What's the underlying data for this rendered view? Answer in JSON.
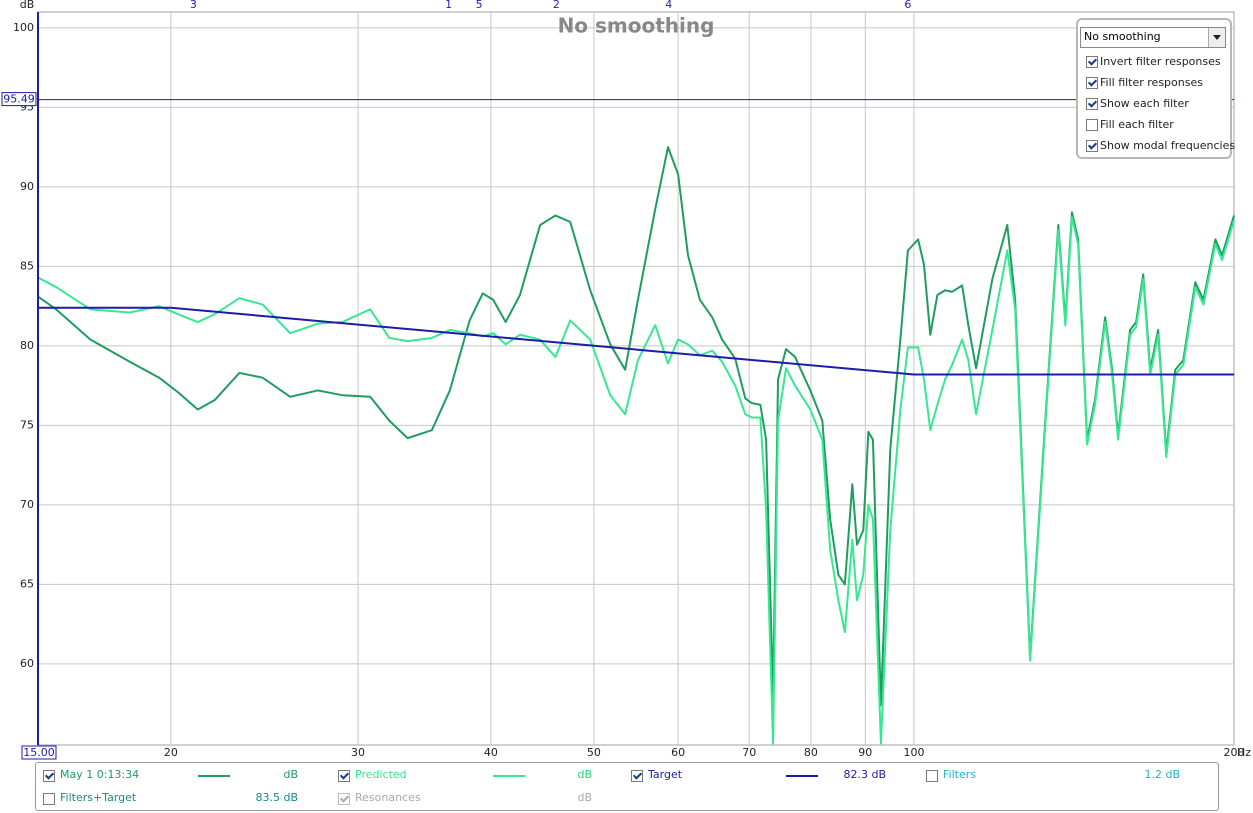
{
  "chart_data": {
    "type": "line",
    "title": "No smoothing",
    "x_label": "Hz",
    "y_label": "dB",
    "xscale": "log",
    "xlim": [
      15,
      200
    ],
    "ylim": [
      54.9,
      101
    ],
    "xticks": [
      20,
      30,
      40,
      50,
      60,
      70,
      80,
      90,
      100,
      200
    ],
    "yticks": [
      60,
      65,
      70,
      75,
      80,
      85,
      90,
      95,
      100
    ],
    "grid": true,
    "cursor": {
      "x": {
        "value": 15,
        "label": "15.00"
      },
      "y": 95.49
    },
    "modal_frequencies": [
      {
        "value": 21.0,
        "label": "3"
      },
      {
        "value": 36.5,
        "label": "1"
      },
      {
        "value": 39.0,
        "label": "5"
      },
      {
        "value": 46.1,
        "label": "2"
      },
      {
        "value": 58.8,
        "label": "4"
      },
      {
        "value": 98.7,
        "label": "6"
      }
    ],
    "series": [
      {
        "name": "May 1 0:13:34",
        "color": "#1f9d5f",
        "readout": "dB",
        "visible": true,
        "x": [
          15.0,
          15.6,
          16.8,
          18.3,
          19.5,
          20.3,
          21.2,
          22.0,
          23.2,
          24.4,
          25.9,
          27.5,
          29.0,
          30.8,
          32.1,
          33.4,
          35.2,
          36.6,
          38.2,
          39.3,
          40.2,
          41.3,
          42.6,
          44.5,
          46.0,
          47.5,
          49.6,
          51.8,
          53.5,
          55.0,
          57.1,
          58.7,
          60.0,
          61.3,
          62.9,
          64.6,
          66.0,
          67.9,
          69.4,
          70.4,
          71.7,
          72.6,
          73.7,
          74.5,
          75.8,
          77.3,
          79.9,
          82.0,
          83.4,
          84.9,
          86.1,
          87.5,
          88.4,
          89.6,
          90.6,
          91.5,
          93.1,
          95.0,
          97.1,
          98.7,
          100.9,
          102.2,
          103.6,
          105.2,
          107.0,
          108.6,
          111.0,
          112.5,
          114.4,
          118.5,
          122.4,
          124.5,
          128.6,
          132.9,
          136.7,
          138.8,
          140.8,
          142.7,
          145.5,
          148.0,
          151.3,
          153.6,
          155.6,
          159.7,
          161.8,
          164.3,
          166.8,
          169.7,
          172.7,
          176.1,
          179.2,
          183.9,
          187.2,
          192.1,
          194.9,
          200.0
        ],
        "values": [
          83.1,
          82.3,
          80.4,
          79.0,
          78.0,
          77.1,
          76.0,
          76.6,
          78.3,
          78.0,
          76.8,
          77.2,
          76.9,
          76.8,
          75.3,
          74.2,
          74.7,
          77.2,
          81.6,
          83.3,
          82.9,
          81.5,
          83.2,
          87.6,
          88.2,
          87.8,
          83.5,
          80.1,
          78.5,
          82.9,
          88.6,
          92.5,
          90.8,
          85.7,
          82.9,
          81.8,
          80.4,
          79.2,
          76.7,
          76.4,
          76.3,
          74.1,
          58.0,
          77.9,
          79.8,
          79.3,
          77.2,
          75.3,
          69.1,
          65.6,
          65.0,
          71.3,
          67.5,
          68.4,
          74.6,
          74.1,
          57.4,
          73.5,
          80.4,
          86.0,
          86.7,
          85.1,
          80.7,
          83.2,
          83.5,
          83.4,
          83.8,
          81.3,
          78.6,
          84.2,
          87.6,
          82.9,
          60.4,
          75.3,
          87.6,
          81.6,
          88.4,
          86.7,
          74.1,
          76.6,
          81.8,
          78.5,
          74.4,
          81.0,
          81.5,
          84.5,
          78.5,
          81.0,
          73.3,
          78.5,
          79.1,
          84.0,
          82.9,
          86.7,
          85.7,
          88.2
        ]
      },
      {
        "name": "Predicted",
        "color": "#36e890",
        "readout": "dB",
        "visible": true,
        "x": [
          15.0,
          15.6,
          16.8,
          18.3,
          19.5,
          20.3,
          21.2,
          22.0,
          23.2,
          24.4,
          25.9,
          27.5,
          29.0,
          30.8,
          32.1,
          33.4,
          35.2,
          36.6,
          38.2,
          39.3,
          40.2,
          41.3,
          42.6,
          44.5,
          46.0,
          47.5,
          49.6,
          51.8,
          53.5,
          55.0,
          57.1,
          58.7,
          60.0,
          61.3,
          62.9,
          64.6,
          66.0,
          67.9,
          69.4,
          70.4,
          71.7,
          72.6,
          73.7,
          74.5,
          75.8,
          77.3,
          79.9,
          82.0,
          83.4,
          84.9,
          86.1,
          87.5,
          88.4,
          89.6,
          90.6,
          91.5,
          93.1,
          95.0,
          97.1,
          98.7,
          100.9,
          102.2,
          103.6,
          105.2,
          107.0,
          108.6,
          111.0,
          112.5,
          114.4,
          118.5,
          122.4,
          124.5,
          128.6,
          132.9,
          136.7,
          138.8,
          140.8,
          142.7,
          145.5,
          148.0,
          151.3,
          153.6,
          155.6,
          159.7,
          161.8,
          164.3,
          166.8,
          169.7,
          172.7,
          176.1,
          179.2,
          183.9,
          187.2,
          192.1,
          194.9,
          200.0
        ],
        "values": [
          84.3,
          83.7,
          82.3,
          82.1,
          82.5,
          82.0,
          81.5,
          82.0,
          83.0,
          82.6,
          80.8,
          81.4,
          81.5,
          82.3,
          80.5,
          80.3,
          80.5,
          81.0,
          80.8,
          80.6,
          80.8,
          80.1,
          80.7,
          80.4,
          79.3,
          81.6,
          80.4,
          76.9,
          75.7,
          79.1,
          81.3,
          78.9,
          80.4,
          80.1,
          79.4,
          79.7,
          79.0,
          77.5,
          75.7,
          75.5,
          75.5,
          69.7,
          55.0,
          75.3,
          78.6,
          77.5,
          76.0,
          74.1,
          67.2,
          64.0,
          62.0,
          67.8,
          64.0,
          65.6,
          70.0,
          69.1,
          55.0,
          68.4,
          76.0,
          79.9,
          79.9,
          77.9,
          74.7,
          76.3,
          77.9,
          78.8,
          80.4,
          79.1,
          75.7,
          81.0,
          86.0,
          82.3,
          60.2,
          75.0,
          87.3,
          81.3,
          88.1,
          86.4,
          73.8,
          76.3,
          81.5,
          78.2,
          74.1,
          80.7,
          81.2,
          84.2,
          78.2,
          80.7,
          73.0,
          78.2,
          78.8,
          83.7,
          82.6,
          86.4,
          85.4,
          87.9
        ]
      },
      {
        "name": "Target",
        "color": "#1c1ca8",
        "readout": "82.3 dB",
        "visible": true,
        "x": [
          15,
          20,
          100,
          200
        ],
        "values": [
          82.4,
          82.4,
          78.2,
          78.2
        ]
      }
    ],
    "extra_traces": [
      {
        "name": "Filters",
        "readout": "1.2 dB",
        "visible": false,
        "color": "#20b4c8"
      },
      {
        "name": "Filters+Target",
        "readout": "83.5 dB",
        "visible": false,
        "color": "#168a8a"
      },
      {
        "name": "Resonances",
        "readout": "dB",
        "visible": true,
        "color": "#a8a8a8"
      }
    ]
  },
  "controls": {
    "smoothing": "No  smoothing",
    "options": [
      {
        "label": "Invert filter responses",
        "checked": true
      },
      {
        "label": "Fill filter responses",
        "checked": true
      },
      {
        "label": "Show each filter",
        "checked": true
      },
      {
        "label": "Fill each filter",
        "checked": false
      },
      {
        "label": "Show modal frequencies",
        "checked": true
      }
    ]
  }
}
